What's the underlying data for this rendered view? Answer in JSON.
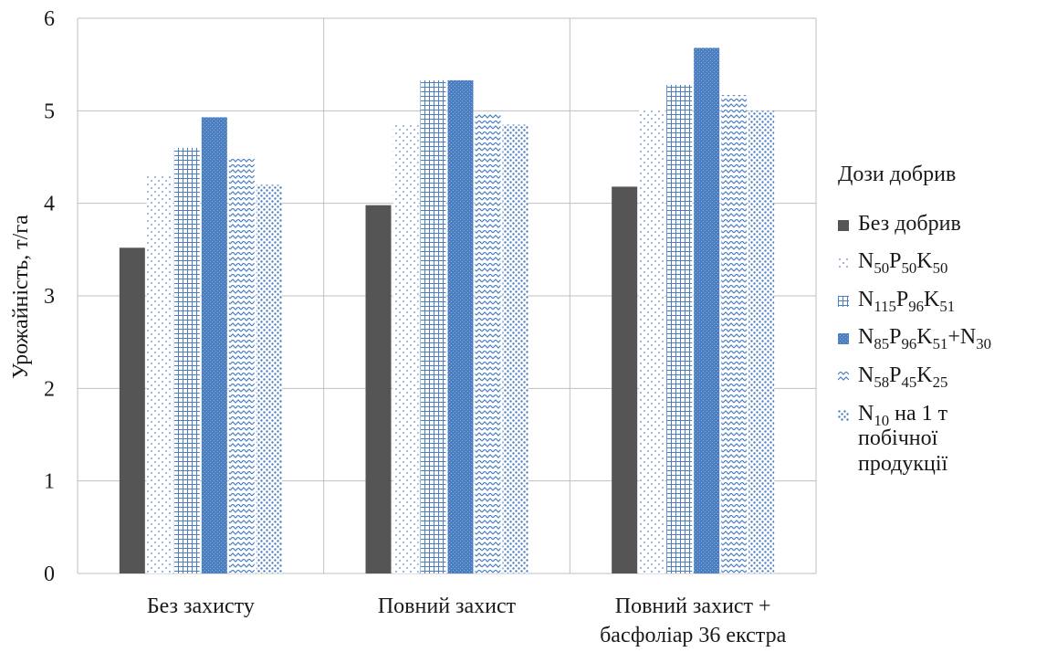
{
  "chart_data": {
    "type": "bar",
    "title": "",
    "xlabel": "",
    "ylabel": "Урожайність, т/га",
    "ylim": [
      0,
      6
    ],
    "yticks": [
      "0",
      "1",
      "2",
      "3",
      "4",
      "5",
      "6"
    ],
    "grid": true,
    "legend_position": "right",
    "categories": [
      [
        "Без захисту"
      ],
      [
        "Повний захист"
      ],
      [
        "Повний захист +",
        "басфоліар 36  екстра"
      ]
    ],
    "series": [
      {
        "name": "Без добрив",
        "values": [
          3.52,
          3.98,
          4.18
        ],
        "color": "#555555",
        "pattern": "solid"
      },
      {
        "name": "N50P50K50",
        "values": [
          4.3,
          4.85,
          5.02
        ],
        "color": "#5b86c5",
        "pattern": "sparse-dots"
      },
      {
        "name": "N115P96K51",
        "values": [
          4.6,
          5.33,
          5.28
        ],
        "color": "#4a7ebf",
        "pattern": "grid"
      },
      {
        "name": "N85P96K51+N30",
        "values": [
          4.93,
          5.33,
          5.68
        ],
        "color": "#4a7ebf",
        "pattern": "dense"
      },
      {
        "name": "N58P45K25",
        "values": [
          4.48,
          4.98,
          5.17
        ],
        "color": "#4a7ebf",
        "pattern": "weave"
      },
      {
        "name": "N10 на 1 т побічної продукції",
        "values": [
          4.2,
          4.85,
          5.0
        ],
        "color": "#4a7ebf",
        "pattern": "dots"
      }
    ]
  },
  "legend": {
    "title": "Дози добрив",
    "items": [
      {
        "label_html": "Без добрив"
      },
      {
        "label_html": "N<sub>50</sub>P<sub>50</sub>K<sub>50</sub>"
      },
      {
        "label_html": "N<sub>115</sub>P<sub>96</sub>K<sub>51</sub>"
      },
      {
        "label_html": "N<sub>85</sub>P<sub>96</sub>K<sub>51</sub>+N<sub>30</sub>"
      },
      {
        "label_html": "N<sub>58</sub>P<sub>45</sub>K<sub>25</sub>"
      },
      {
        "label_html": "N<sub>10</sub> на 1 т<br>побічної<br>продукції"
      }
    ]
  }
}
